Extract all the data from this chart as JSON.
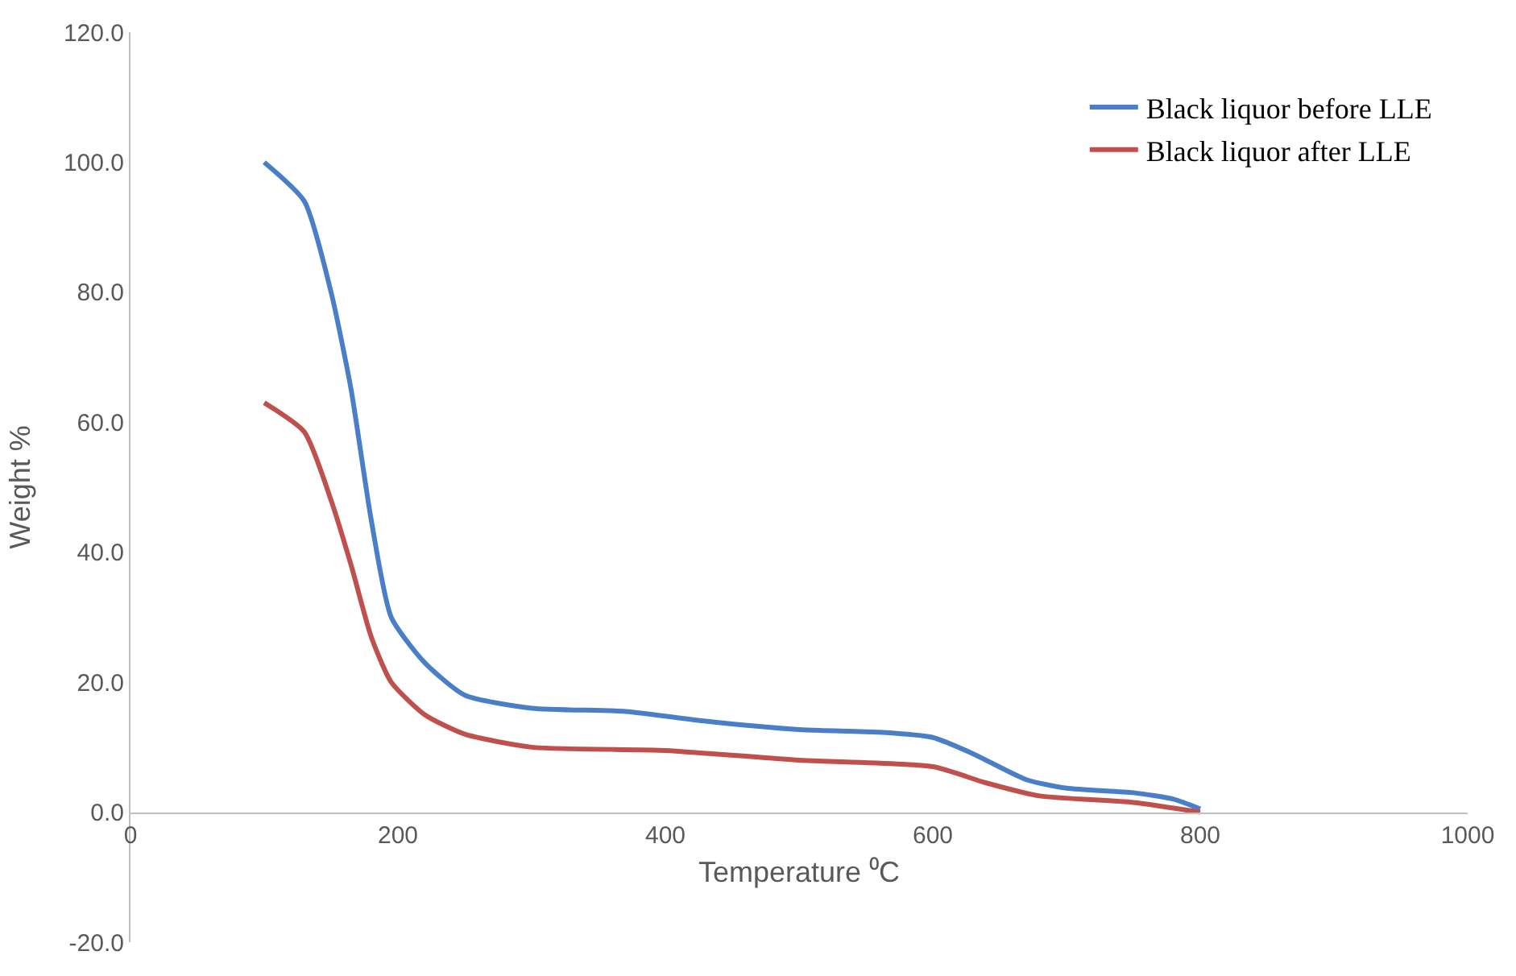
{
  "chart_data": {
    "type": "line",
    "xlabel": "Temperature ⁰C",
    "ylabel": "Weight %",
    "xlim": [
      0,
      1000
    ],
    "xticks": [
      0,
      200,
      400,
      600,
      800,
      1000
    ],
    "ylim": [
      -20,
      120
    ],
    "yticks": [
      {
        "value": -20,
        "label": "-20.0"
      },
      {
        "value": 0,
        "label": "0.0"
      },
      {
        "value": 20,
        "label": "20.0"
      },
      {
        "value": 40,
        "label": "40.0"
      },
      {
        "value": 60,
        "label": "60.0"
      },
      {
        "value": 80,
        "label": "80.0"
      },
      {
        "value": 100,
        "label": "100.0"
      },
      {
        "value": 120,
        "label": "120.0"
      }
    ],
    "legend": "top right",
    "marker": "none",
    "line_style": "solid",
    "series": [
      {
        "name": "Black liquor before LLE",
        "color": "#4a7fc8",
        "x": [
          100,
          130,
          150,
          165,
          180,
          195,
          220,
          250,
          300,
          370,
          430,
          500,
          560,
          600,
          630,
          670,
          700,
          750,
          780,
          800
        ],
        "values": [
          100,
          94,
          80,
          65,
          45,
          30,
          23,
          18,
          16,
          15.5,
          14,
          12.7,
          12.3,
          11.5,
          9,
          5,
          3.7,
          3,
          2,
          0.5
        ]
      },
      {
        "name": "Black liquor after LLE",
        "color": "#c0504d",
        "x": [
          100,
          130,
          150,
          165,
          180,
          195,
          220,
          250,
          300,
          400,
          500,
          600,
          640,
          680,
          750,
          800
        ],
        "values": [
          63,
          58.5,
          48,
          38,
          27,
          20,
          15,
          12,
          10,
          9.5,
          8,
          7,
          4.5,
          2.5,
          1.5,
          0
        ]
      }
    ]
  }
}
